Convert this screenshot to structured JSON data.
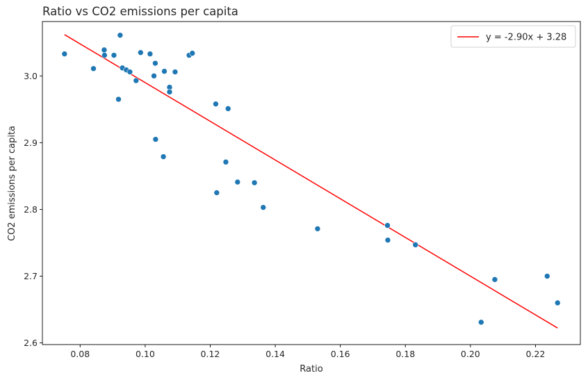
{
  "chart_data": {
    "type": "scatter",
    "title": "Ratio vs CO2 emissions per capita",
    "xlabel": "Ratio",
    "ylabel": "CO2 emissions per capita",
    "xlim": [
      0.0684,
      0.2338
    ],
    "ylim": [
      2.5975,
      3.0815
    ],
    "x_ticks": [
      "0.08",
      "0.10",
      "0.12",
      "0.14",
      "0.16",
      "0.18",
      "0.20",
      "0.22"
    ],
    "y_ticks": [
      "2.6",
      "2.7",
      "2.8",
      "2.9",
      "3.0"
    ],
    "grid": false,
    "legend_position": "top-right",
    "point_color": "#1f77b4",
    "line_color": "#ff0000",
    "points": [
      {
        "x": 0.0752,
        "y": 3.033
      },
      {
        "x": 0.0841,
        "y": 3.011
      },
      {
        "x": 0.0874,
        "y": 3.039
      },
      {
        "x": 0.0875,
        "y": 3.031
      },
      {
        "x": 0.0904,
        "y": 3.031
      },
      {
        "x": 0.0918,
        "y": 2.965
      },
      {
        "x": 0.0923,
        "y": 3.061
      },
      {
        "x": 0.093,
        "y": 3.012
      },
      {
        "x": 0.0942,
        "y": 3.009
      },
      {
        "x": 0.0953,
        "y": 3.006
      },
      {
        "x": 0.0972,
        "y": 2.993
      },
      {
        "x": 0.0986,
        "y": 3.035
      },
      {
        "x": 0.1015,
        "y": 3.033
      },
      {
        "x": 0.1027,
        "y": 3.0
      },
      {
        "x": 0.1031,
        "y": 3.019
      },
      {
        "x": 0.1032,
        "y": 2.905
      },
      {
        "x": 0.1056,
        "y": 2.879
      },
      {
        "x": 0.1059,
        "y": 3.007
      },
      {
        "x": 0.1075,
        "y": 2.983
      },
      {
        "x": 0.1075,
        "y": 2.976
      },
      {
        "x": 0.1092,
        "y": 3.006
      },
      {
        "x": 0.1135,
        "y": 3.031
      },
      {
        "x": 0.1145,
        "y": 3.034
      },
      {
        "x": 0.1217,
        "y": 2.958
      },
      {
        "x": 0.122,
        "y": 2.825
      },
      {
        "x": 0.1248,
        "y": 2.871
      },
      {
        "x": 0.1255,
        "y": 2.951
      },
      {
        "x": 0.1284,
        "y": 2.841
      },
      {
        "x": 0.1336,
        "y": 2.84
      },
      {
        "x": 0.1363,
        "y": 2.803
      },
      {
        "x": 0.153,
        "y": 2.771
      },
      {
        "x": 0.1745,
        "y": 2.776
      },
      {
        "x": 0.1746,
        "y": 2.754
      },
      {
        "x": 0.1831,
        "y": 2.747
      },
      {
        "x": 0.2033,
        "y": 2.631
      },
      {
        "x": 0.2075,
        "y": 2.695
      },
      {
        "x": 0.2236,
        "y": 2.7
      },
      {
        "x": 0.2268,
        "y": 2.66
      }
    ],
    "fit_line": {
      "label": "y = -2.90x + 3.28",
      "slope": -2.9,
      "intercept": 3.28,
      "x_range": [
        0.0752,
        0.2268
      ]
    }
  }
}
